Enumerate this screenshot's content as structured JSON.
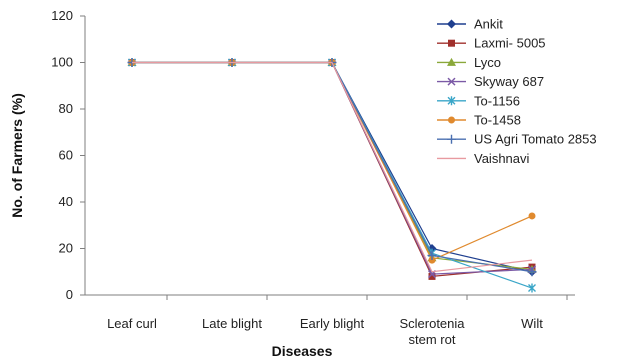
{
  "chart_data": {
    "type": "line",
    "xlabel": "Diseases",
    "ylabel": "No. of Farmers (%)",
    "categories": [
      [
        "Leaf curl"
      ],
      [
        "Late blight"
      ],
      [
        "Early blight"
      ],
      [
        "Sclerotenia",
        "stem rot"
      ],
      [
        "Wilt"
      ]
    ],
    "ylim": [
      0,
      120
    ],
    "yticks": [
      0,
      20,
      40,
      60,
      80,
      100,
      120
    ],
    "grid": false,
    "legend_position": "top-right",
    "series": [
      {
        "name": "Ankit",
        "color": "#1f3f8f",
        "marker": "diamond",
        "values": [
          100,
          100,
          100,
          20,
          10
        ]
      },
      {
        "name": "Laxmi- 5005",
        "color": "#a0302c",
        "marker": "square",
        "values": [
          100,
          100,
          100,
          8,
          12
        ]
      },
      {
        "name": "Lyco",
        "color": "#8aa83a",
        "marker": "triangle",
        "values": [
          100,
          100,
          100,
          16,
          11
        ]
      },
      {
        "name": "Skyway 687",
        "color": "#7b5aa6",
        "marker": "x",
        "values": [
          100,
          100,
          100,
          9,
          11
        ]
      },
      {
        "name": "To-1156",
        "color": "#3aa6c8",
        "marker": "star",
        "values": [
          100,
          100,
          100,
          18,
          3
        ]
      },
      {
        "name": "To-1458",
        "color": "#e08a2e",
        "marker": "circle",
        "values": [
          100,
          100,
          100,
          15,
          34
        ]
      },
      {
        "name": "US Agri Tomato 2853",
        "color": "#4a6fb0",
        "marker": "plus",
        "values": [
          100,
          100,
          100,
          17,
          10
        ]
      },
      {
        "name": "Vaishnavi",
        "color": "#e89aa0",
        "marker": "none",
        "values": [
          100,
          100,
          100,
          10,
          15
        ]
      }
    ]
  }
}
